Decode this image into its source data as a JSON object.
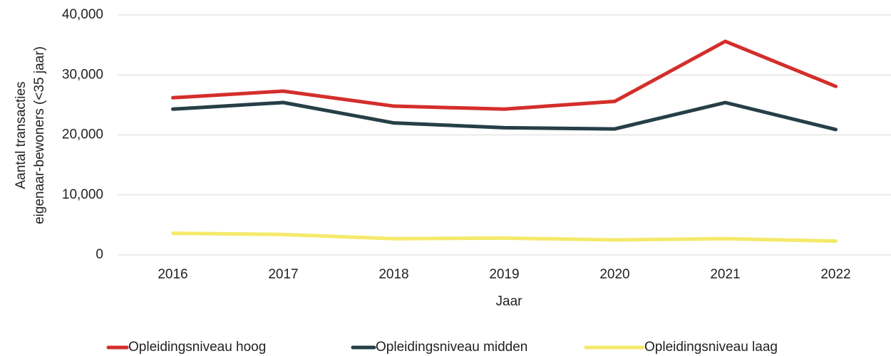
{
  "chart_data": {
    "type": "line",
    "categories": [
      "2016",
      "2017",
      "2018",
      "2019",
      "2020",
      "2021",
      "2022"
    ],
    "series": [
      {
        "name": "Opleidingsniveau hoog",
        "color": "#d42e2b",
        "values": [
          26200,
          27300,
          24800,
          24300,
          25600,
          35600,
          28100
        ]
      },
      {
        "name": "Opleidingsniveau midden",
        "color": "#263f47",
        "values": [
          24300,
          25400,
          22000,
          21200,
          21000,
          25400,
          20900
        ]
      },
      {
        "name": "Opleidingsniveau laag",
        "color": "#f5e96b",
        "values": [
          3600,
          3400,
          2700,
          2800,
          2500,
          2700,
          2300
        ]
      }
    ],
    "xlabel": "Jaar",
    "ylabel": [
      "Aantal transacties",
      "eigenaar-bewoners (<35 jaar)"
    ],
    "ylim": [
      0,
      40000
    ],
    "yticks": [
      0,
      {
        "value": 10000,
        "label": "10,000"
      },
      {
        "value": 20000,
        "label": "20,000"
      },
      {
        "value": 30000,
        "label": "30,000"
      },
      {
        "value": 40000,
        "label": "40,000"
      }
    ],
    "grid": true,
    "legend": "bottom"
  }
}
